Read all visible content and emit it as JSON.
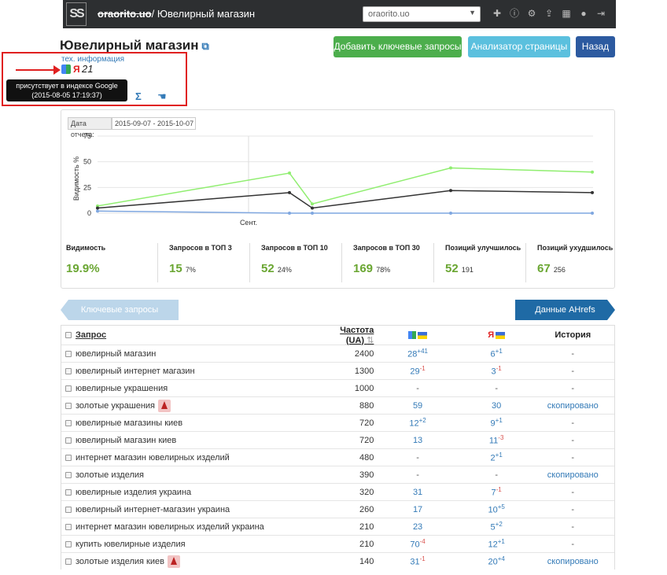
{
  "header": {
    "project_strike": "oraorito.uo",
    "breadcrumb": "/ Ювелирный магазин",
    "project_select": "oraorito.uo",
    "icons": [
      "plus-icon",
      "info-icon",
      "gears-icon",
      "upload-icon",
      "grid-icon",
      "user-icon",
      "signout-icon"
    ]
  },
  "page": {
    "title": "Ювелирный магазин",
    "btn_add": "Добавить ключевые запросы",
    "btn_analyzer": "Анализатор страницы",
    "btn_back": "Назад"
  },
  "info": {
    "tech": "тех. информация",
    "ya_letter": "Я",
    "rank": "21",
    "tooltip_line1": "присутствует в индексе Google",
    "tooltip_line2": "(2015-08-05 17:19:37)",
    "sigma": "Σ"
  },
  "report": {
    "date_label": "Дата отчета:",
    "date_range": "2015-09-07 - 2015-10-07"
  },
  "chart_data": {
    "type": "line",
    "ylabel": "Видимость %",
    "ylim": [
      0,
      75
    ],
    "yticks": [
      "75",
      "50",
      "25",
      "0"
    ],
    "xtick": "Сент.",
    "x": [
      0,
      1,
      2,
      3,
      4
    ],
    "series": [
      {
        "color": "#90ee70",
        "values": [
          7,
          39,
          9,
          44,
          40
        ]
      },
      {
        "color": "#333333",
        "values": [
          5,
          20,
          5,
          22,
          20
        ]
      },
      {
        "color": "#7fa7e0",
        "values": [
          2,
          0,
          0,
          0,
          0
        ]
      }
    ]
  },
  "stats": [
    {
      "label": "Видимость",
      "value": "19.9%",
      "sub": ""
    },
    {
      "label": "Запросов в ТОП 3",
      "value": "15",
      "sub": "7%"
    },
    {
      "label": "Запросов в ТОП 10",
      "value": "52",
      "sub": "24%"
    },
    {
      "label": "Запросов в ТОП 30",
      "value": "169",
      "sub": "78%"
    },
    {
      "label": "Позиций улучшилось",
      "value": "52",
      "sub": "191"
    },
    {
      "label": "Позиций ухудшилось",
      "value": "67",
      "sub": "256"
    }
  ],
  "tabs": {
    "keywords": "Ключевые запросы",
    "ahrefs": "Данные AHrefs"
  },
  "table": {
    "headers": {
      "query": "Запрос",
      "freq": "Частота (UA)",
      "history": "История",
      "ya": "Я"
    },
    "rows": [
      {
        "q": "ювелирный магазин",
        "f": "2400",
        "g": "28",
        "gd": "+41",
        "gdt": "up",
        "y": "6",
        "yd": "+1",
        "ydt": "up",
        "h": "-",
        "warn": false
      },
      {
        "q": "ювелирный интернет магазин",
        "f": "1300",
        "g": "29",
        "gd": "-1",
        "gdt": "down",
        "y": "3",
        "yd": "-1",
        "ydt": "down",
        "h": "-",
        "warn": false
      },
      {
        "q": "ювелирные украшения",
        "f": "1000",
        "g": "-",
        "gd": "",
        "gdt": "",
        "y": "-",
        "yd": "",
        "ydt": "",
        "h": "-",
        "warn": false
      },
      {
        "q": "золотые украшения",
        "f": "880",
        "g": "59",
        "gd": "",
        "gdt": "",
        "y": "30",
        "yd": "",
        "ydt": "",
        "h": "скопировано",
        "warn": true
      },
      {
        "q": "ювелирные магазины киев",
        "f": "720",
        "g": "12",
        "gd": "+2",
        "gdt": "up",
        "y": "9",
        "yd": "+1",
        "ydt": "up",
        "h": "-",
        "warn": false
      },
      {
        "q": "ювелирный магазин киев",
        "f": "720",
        "g": "13",
        "gd": "",
        "gdt": "",
        "y": "11",
        "yd": "-3",
        "ydt": "down",
        "h": "-",
        "warn": false
      },
      {
        "q": "интернет магазин ювелирных изделий",
        "f": "480",
        "g": "-",
        "gd": "",
        "gdt": "",
        "y": "2",
        "yd": "+1",
        "ydt": "up",
        "h": "-",
        "warn": false
      },
      {
        "q": "золотые изделия",
        "f": "390",
        "g": "-",
        "gd": "",
        "gdt": "",
        "y": "-",
        "yd": "",
        "ydt": "",
        "h": "скопировано",
        "warn": false
      },
      {
        "q": "ювелирные изделия украина",
        "f": "320",
        "g": "31",
        "gd": "",
        "gdt": "",
        "y": "7",
        "yd": "-1",
        "ydt": "down",
        "h": "-",
        "warn": false
      },
      {
        "q": "ювелирный интернет-магазин украина",
        "f": "260",
        "g": "17",
        "gd": "",
        "gdt": "",
        "y": "10",
        "yd": "+5",
        "ydt": "up",
        "h": "-",
        "warn": false
      },
      {
        "q": "интернет магазин ювелирных изделий украина",
        "f": "210",
        "g": "23",
        "gd": "",
        "gdt": "",
        "y": "5",
        "yd": "+2",
        "ydt": "up",
        "h": "-",
        "warn": false
      },
      {
        "q": "купить ювелирные изделия",
        "f": "210",
        "g": "70",
        "gd": "-4",
        "gdt": "down",
        "y": "12",
        "yd": "+1",
        "ydt": "up",
        "h": "-",
        "warn": false
      },
      {
        "q": "золотые изделия киев",
        "f": "140",
        "g": "31",
        "gd": "-1",
        "gdt": "down",
        "y": "20",
        "yd": "+4",
        "ydt": "up",
        "h": "скопировано",
        "warn": true
      }
    ]
  }
}
